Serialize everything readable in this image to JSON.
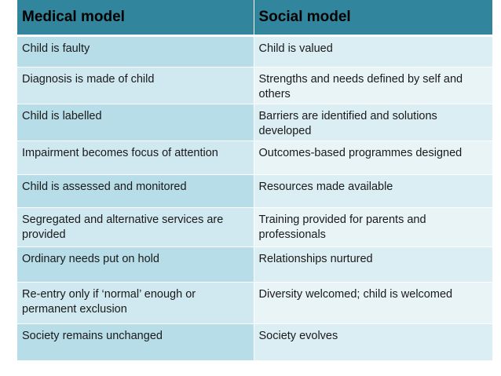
{
  "header": {
    "col1": "Medical model",
    "col2": "Social model"
  },
  "rows": [
    {
      "medical": "Child is faulty",
      "social": "Child is valued"
    },
    {
      "medical": "Diagnosis is made of child",
      "social": "Strengths and needs defined by self and others"
    },
    {
      "medical": " Child is labelled",
      "social": "Barriers are identified and solutions developed"
    },
    {
      "medical": "Impairment becomes focus of attention",
      "social": "Outcomes-based programmes designed"
    },
    {
      "medical": " Child is assessed and monitored",
      "social": "Resources made available"
    },
    {
      "medical": "Segregated and alternative services are provided",
      "social": "Training provided for parents and professionals"
    },
    {
      "medical": "Ordinary needs put on hold",
      "social": "Relationships nurtured"
    },
    {
      "medical": "Re-entry only if ‘normal’ enough or permanent exclusion",
      "social": "Diversity welcomed; child is welcomed"
    },
    {
      "medical": "Society remains unchanged",
      "social": "Society evolves"
    }
  ],
  "colors": {
    "header_bg": "#31859c",
    "col1_bg": "#b7dde8",
    "col2_bg": "#dbeef3"
  }
}
